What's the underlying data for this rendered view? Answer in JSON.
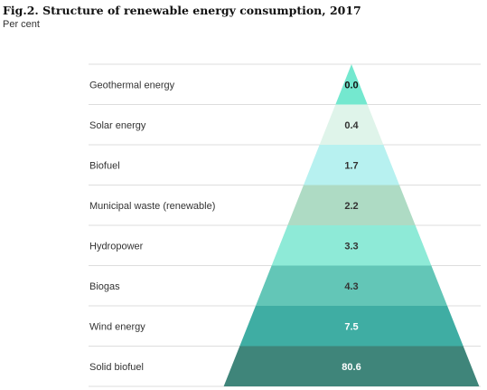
{
  "title": "Fig.2. Structure of renewable energy consumption, 2017",
  "subtitle": "Per cent",
  "chart_data": {
    "type": "bar",
    "subtype": "pyramid",
    "title": "Fig.2. Structure of renewable energy consumption, 2017",
    "subtitle": "Per cent",
    "categories": [
      "Geothermal energy",
      "Solar energy",
      "Biofuel",
      "Municipal waste (renewable)",
      "Hydropower",
      "Biogas",
      "Wind energy",
      "Solid biofuel"
    ],
    "values": [
      0.0,
      0.4,
      1.7,
      2.2,
      3.3,
      4.3,
      7.5,
      80.6
    ],
    "value_labels": [
      "0.0",
      "0.4",
      "1.7",
      "2.2",
      "3.3",
      "4.3",
      "7.5",
      "80.6"
    ],
    "colors": [
      "#74e8cf",
      "#dff4ea",
      "#b7f1f0",
      "#aedbc4",
      "#8eead7",
      "#63c6b7",
      "#3fada3",
      "#3f857a"
    ],
    "label_colors": [
      "#111111",
      "#333333",
      "#333333",
      "#333333",
      "#333333",
      "#333333",
      "#ffffff",
      "#ffffff"
    ],
    "grid": true,
    "legend": "none"
  }
}
